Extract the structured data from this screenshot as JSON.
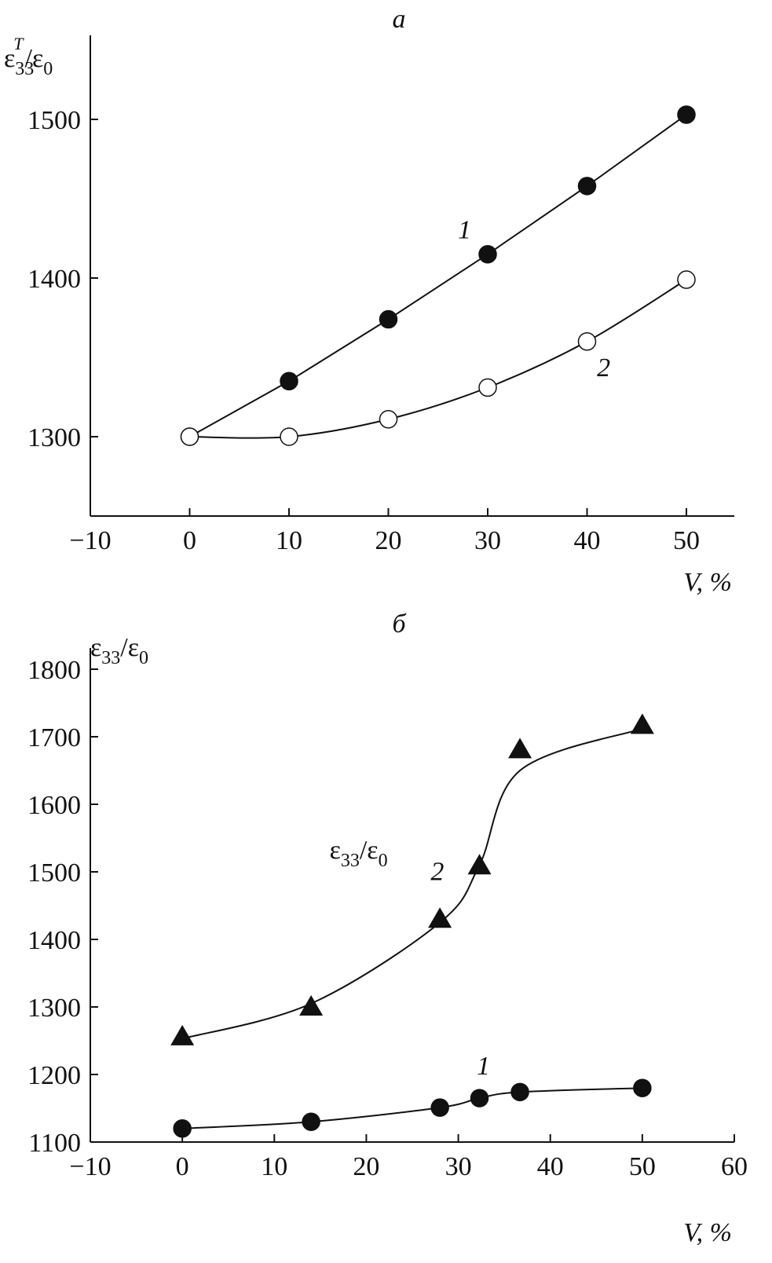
{
  "chart_data": [
    {
      "type": "line",
      "panel_label": "а",
      "ylabel": "ε33T/ε0",
      "xlabel": "V, %",
      "xlim": [
        -10,
        55
      ],
      "ylim": [
        1250,
        1560
      ],
      "xticks": [
        -10,
        0,
        10,
        20,
        30,
        40,
        50
      ],
      "yticks": [
        1300,
        1400,
        1500
      ],
      "grid": false,
      "series": [
        {
          "name": "1",
          "marker": "filled-circle",
          "x": [
            0,
            10,
            20,
            30,
            40,
            50
          ],
          "y": [
            1300,
            1335,
            1374,
            1415,
            1458,
            1503
          ],
          "label_at": [
            27,
            1425
          ],
          "smooth": false
        },
        {
          "name": "2",
          "marker": "open-circle",
          "x": [
            0,
            10,
            20,
            30,
            40,
            50
          ],
          "y": [
            1300,
            1300,
            1311,
            1331,
            1360,
            1399
          ],
          "label_at": [
            41,
            1338
          ],
          "smooth": true
        }
      ]
    },
    {
      "type": "line",
      "panel_label": "б",
      "ylabel": "ε33/ε0",
      "xlabel": "V, %",
      "annotation": "ε33/ε0",
      "annotation_at": [
        16,
        1520
      ],
      "xlim": [
        -10,
        60
      ],
      "ylim": [
        1100,
        1800
      ],
      "xticks": [
        -10,
        0,
        10,
        20,
        30,
        40,
        50,
        60
      ],
      "yticks": [
        1100,
        1200,
        1300,
        1400,
        1500,
        1600,
        1700,
        1800
      ],
      "grid": false,
      "series": [
        {
          "name": "1",
          "marker": "filled-circle",
          "x": [
            0,
            14,
            28,
            32.3,
            36.7,
            50
          ],
          "y": [
            1120,
            1130,
            1151,
            1165,
            1174,
            1180
          ],
          "label_at": [
            32,
            1200
          ],
          "smooth": true
        },
        {
          "name": "2",
          "marker": "filled-triangle",
          "x": [
            0,
            14,
            28,
            32.3,
            36.7,
            50
          ],
          "y": [
            1256,
            1300,
            1430,
            1509,
            1681,
            1717
          ],
          "label_at": [
            27,
            1488
          ],
          "smooth": true,
          "fit_curve": {
            "x": [
              0,
              14,
              28,
              32.3,
              36.7,
              50
            ],
            "y": [
              1253,
              1305,
              1425,
              1510,
              1650,
              1712
            ]
          }
        }
      ]
    }
  ]
}
